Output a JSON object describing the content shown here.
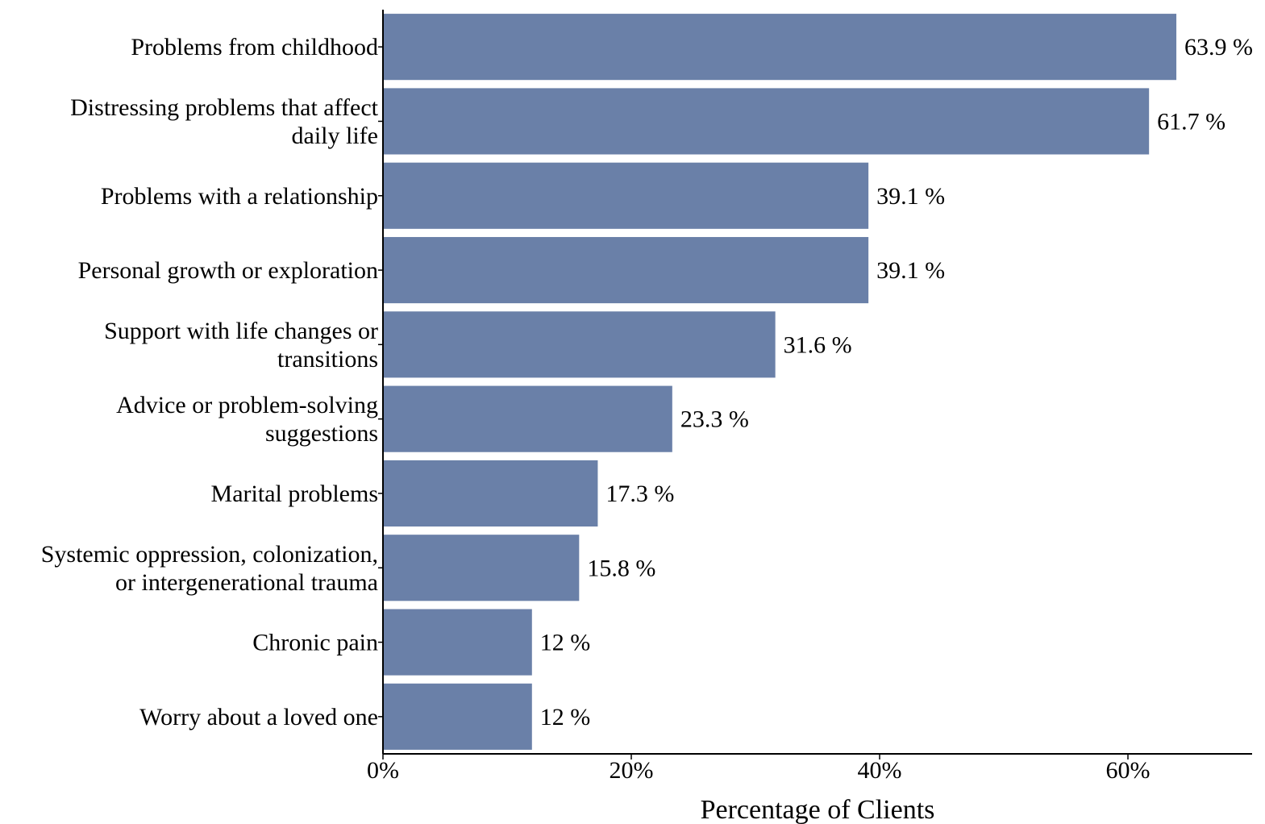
{
  "chart_data": {
    "type": "bar",
    "orientation": "horizontal",
    "categories": [
      [
        "Problems from childhood"
      ],
      [
        "Distressing problems that affect",
        "daily life"
      ],
      [
        "Problems with a relationship"
      ],
      [
        "Personal growth or exploration"
      ],
      [
        "Support with life changes or",
        "transitions"
      ],
      [
        "Advice or problem-solving",
        "suggestions"
      ],
      [
        "Marital problems"
      ],
      [
        "Systemic oppression, colonization,",
        "or intergenerational trauma"
      ],
      [
        "Chronic pain"
      ],
      [
        "Worry about a loved one"
      ]
    ],
    "values": [
      63.9,
      61.7,
      39.1,
      39.1,
      31.6,
      23.3,
      17.3,
      15.8,
      12,
      12
    ],
    "value_labels": [
      "63.9 %",
      "61.7 %",
      "39.1 %",
      "39.1 %",
      "31.6 %",
      "23.3 %",
      "17.3 %",
      "15.8 %",
      "12 %",
      "12 %"
    ],
    "xlabel": "Percentage of Clients",
    "ylabel": "",
    "xlim": [
      0,
      70
    ],
    "xticks": [
      0,
      20,
      40,
      60
    ],
    "xtick_labels": [
      "0%",
      "20%",
      "40%",
      "60%"
    ],
    "bar_color": "#6a80a8",
    "grid": false,
    "legend": "none"
  }
}
